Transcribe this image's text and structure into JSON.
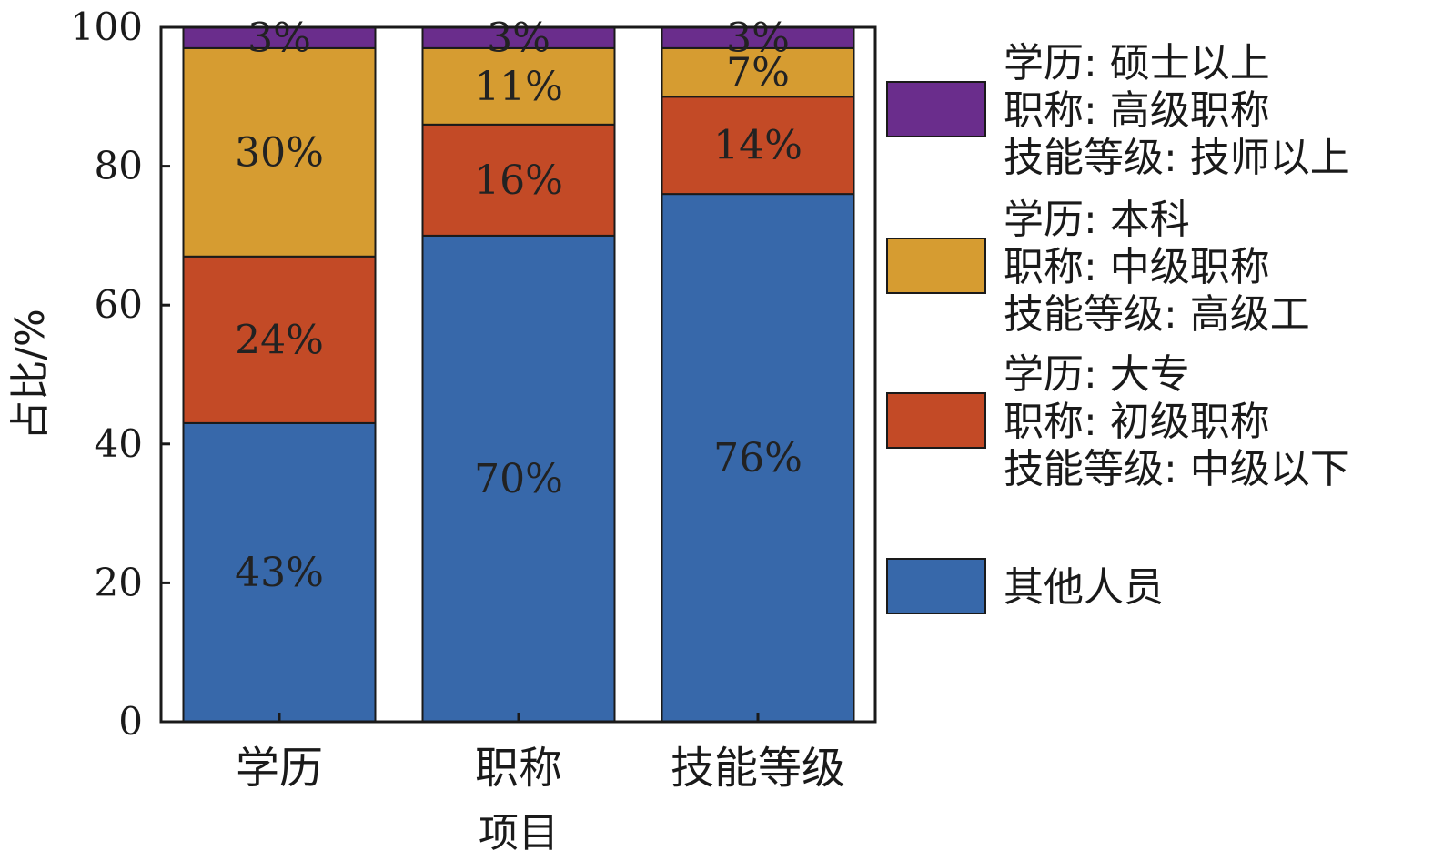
{
  "chart_data": {
    "type": "bar",
    "stacked": true,
    "categories": [
      "学历",
      "职称",
      "技能等级"
    ],
    "xlabel": "项目",
    "ylabel": "占比/%",
    "ylim": [
      0,
      100
    ],
    "yticks": [
      0,
      20,
      40,
      60,
      80,
      100
    ],
    "grid": false,
    "legend_position": "right",
    "series": [
      {
        "name": "其他人员",
        "legend_lines": [
          "其他人员"
        ],
        "color": "#3768aa",
        "values": [
          43,
          70,
          76
        ],
        "labels": [
          "43%",
          "70%",
          "76%"
        ]
      },
      {
        "name": "学历: 大专 / 职称: 初级职称 / 技能等级: 中级以下",
        "legend_lines": [
          "学历: 大专",
          "职称: 初级职称",
          "技能等级: 中级以下"
        ],
        "color": "#c34a26",
        "values": [
          24,
          16,
          14
        ],
        "labels": [
          "24%",
          "16%",
          "14%"
        ]
      },
      {
        "name": "学历: 本科 / 职称: 中级职称 / 技能等级: 高级工",
        "legend_lines": [
          "学历: 本科",
          "职称: 中级职称",
          "技能等级: 高级工"
        ],
        "color": "#d69c31",
        "values": [
          30,
          11,
          7
        ],
        "labels": [
          "30%",
          "11%",
          "7%"
        ]
      },
      {
        "name": "学历: 硕士以上 / 职称: 高级职称 / 技能等级: 技师以上",
        "legend_lines": [
          "学历: 硕士以上",
          "职称: 高级职称",
          "技能等级: 技师以上"
        ],
        "color": "#6a2d8c",
        "values": [
          3,
          3,
          3
        ],
        "labels": [
          "3%",
          "3%",
          "3%"
        ]
      }
    ]
  }
}
